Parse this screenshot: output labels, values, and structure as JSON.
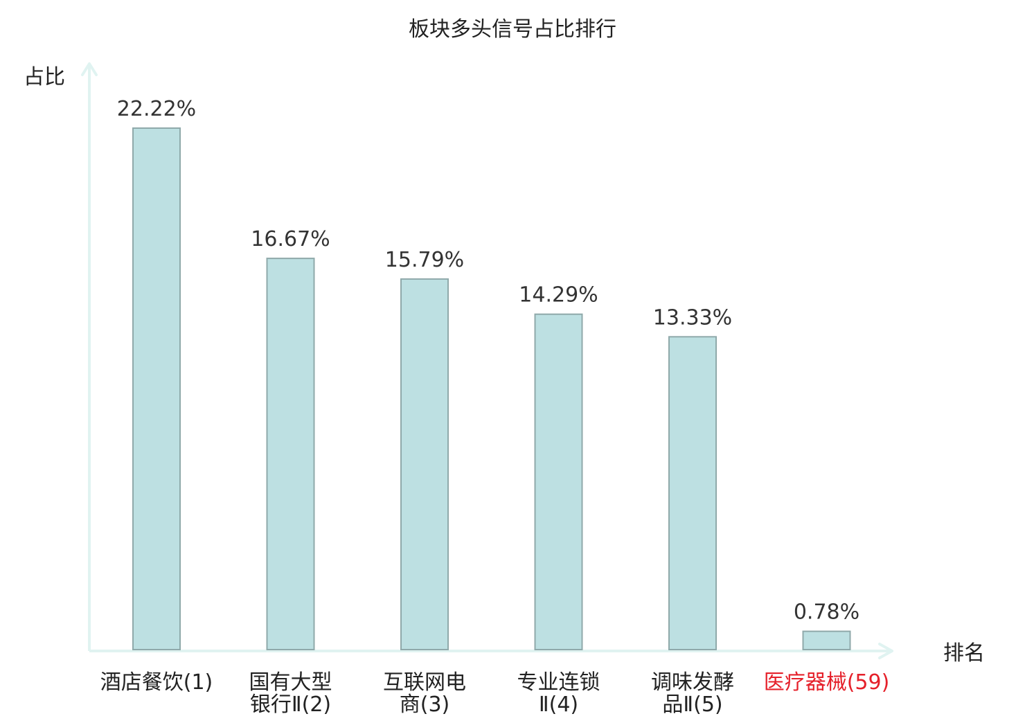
{
  "chart_data": {
    "type": "bar",
    "title": "板块多头信号占比排行",
    "ylabel": "占比",
    "xlabel": "排名",
    "ylim": [
      0,
      25
    ],
    "grid": false,
    "categories": [
      [
        "酒店餐饮(1)"
      ],
      [
        "国有大型",
        "银行Ⅱ(2)"
      ],
      [
        "互联网电",
        "商(3)"
      ],
      [
        "专业连锁",
        "Ⅱ(4)"
      ],
      [
        "调味发酵",
        "品Ⅱ(5)"
      ],
      [
        "医疗器械(59)"
      ]
    ],
    "values": [
      22.22,
      16.67,
      15.79,
      14.29,
      13.33,
      0.78
    ],
    "value_labels": [
      "22.22%",
      "16.67%",
      "15.79%",
      "14.29%",
      "13.33%",
      "0.78%"
    ],
    "highlight_index": 5,
    "colors": {
      "bar_fill": "#bde0e2",
      "bar_stroke": "#8fa9aa",
      "axis": "#e0f3f1",
      "text": "#333333",
      "highlight": "#e5202a"
    }
  }
}
